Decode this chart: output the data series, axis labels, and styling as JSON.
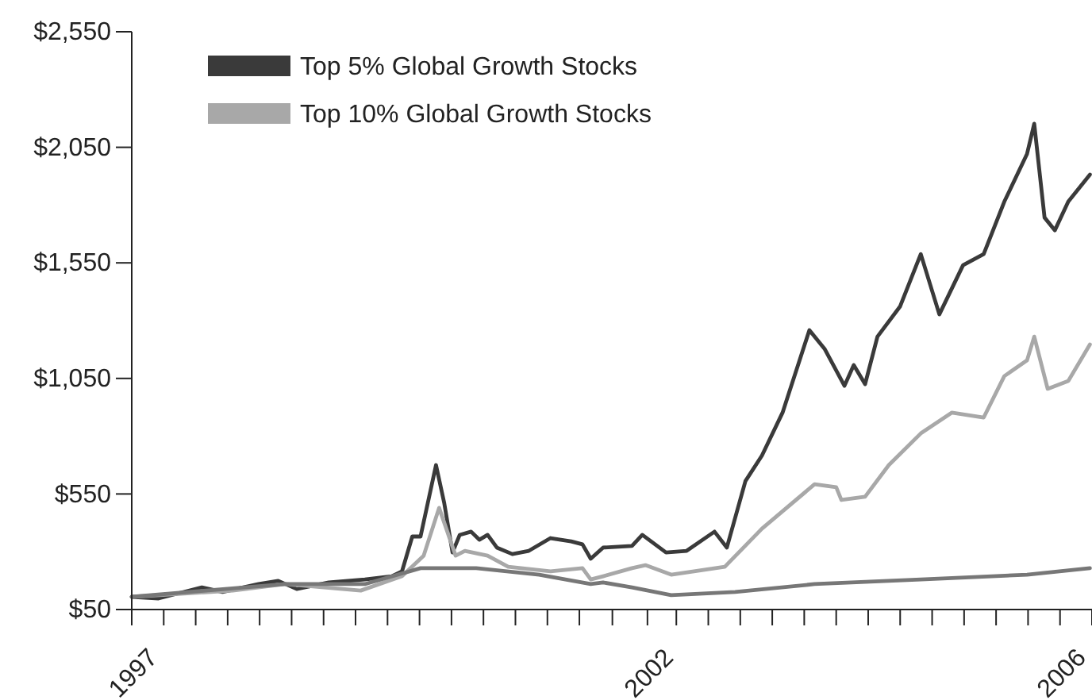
{
  "chart_data": {
    "type": "line",
    "xlim": [
      1997,
      2006.31
    ],
    "xticks": [
      1997,
      {
        "value": 1997.31,
        "label": null
      },
      {
        "value": 1997.62,
        "label": null
      },
      {
        "value": 1997.93,
        "label": null
      },
      {
        "value": 1998.24,
        "label": null
      },
      {
        "value": 1998.55,
        "label": null
      },
      {
        "value": 1998.86,
        "label": null
      },
      {
        "value": 1999.17,
        "label": null
      },
      {
        "value": 1999.48,
        "label": null
      },
      {
        "value": 1999.79,
        "label": null
      },
      {
        "value": 2000.1,
        "label": null
      },
      {
        "value": 2000.41,
        "label": null
      },
      {
        "value": 2000.72,
        "label": null
      },
      {
        "value": 2001.03,
        "label": null
      },
      {
        "value": 2001.34,
        "label": null
      },
      {
        "value": 2001.66,
        "label": null
      },
      2002,
      {
        "value": 2002.28,
        "label": null
      },
      {
        "value": 2002.59,
        "label": null
      },
      {
        "value": 2002.9,
        "label": null
      },
      {
        "value": 2003.21,
        "label": null
      },
      {
        "value": 2003.52,
        "label": null
      },
      {
        "value": 2003.83,
        "label": null
      },
      {
        "value": 2004.14,
        "label": null
      },
      {
        "value": 2004.45,
        "label": null
      },
      {
        "value": 2004.76,
        "label": null
      },
      {
        "value": 2005.07,
        "label": null
      },
      {
        "value": 2005.38,
        "label": null
      },
      {
        "value": 2005.69,
        "label": null
      },
      2006,
      {
        "value": 2006.31,
        "label": null
      }
    ],
    "ylim": [
      50,
      2550
    ],
    "yticks": [
      {
        "value": 50,
        "label": "$50"
      },
      {
        "value": 550,
        "label": "$550"
      },
      {
        "value": 1050,
        "label": "$1,050"
      },
      {
        "value": 1550,
        "label": "$1,550"
      },
      {
        "value": 2050,
        "label": "$2,050"
      },
      {
        "value": 2550,
        "label": "$2,550"
      }
    ],
    "grid": false,
    "legend": "top left",
    "line_style": "solid",
    "marker": "none",
    "series": [
      {
        "name": "Top 5% Global Growth Stocks",
        "color": "#3a3a3a",
        "x": [
          1997,
          1997.26,
          1997.68,
          1997.88,
          1998.23,
          1998.42,
          1998.6,
          1998.91,
          1999.26,
          1999.52,
          1999.62,
          1999.72,
          1999.8,
          1999.95,
          2000.03,
          2000.11,
          2000.18,
          2000.29,
          2000.37,
          2000.45,
          2000.54,
          2000.69,
          2000.85,
          2001.06,
          2001.26,
          2001.37,
          2001.45,
          2001.57,
          2001.85,
          2001.95,
          2002.18,
          2002.38,
          2002.65,
          2002.77,
          2002.95,
          2003.11,
          2003.31,
          2003.57,
          2003.72,
          2003.91,
          2004.0,
          2004.11,
          2004.23,
          2004.45,
          2004.65,
          2004.83,
          2005.06,
          2005.26,
          2005.46,
          2005.68,
          2005.75,
          2005.85,
          2005.95,
          2006.08,
          2006.29
        ],
        "values": [
          105,
          98,
          146,
          126,
          160,
          174,
          139,
          167,
          180,
          194,
          215,
          366,
          366,
          675,
          510,
          297,
          373,
          387,
          352,
          373,
          318,
          290,
          304,
          359,
          345,
          332,
          270,
          318,
          325,
          373,
          297,
          304,
          387,
          318,
          606,
          716,
          902,
          1259,
          1176,
          1018,
          1108,
          1025,
          1231,
          1362,
          1588,
          1327,
          1540,
          1588,
          1815,
          2021,
          2152,
          1746,
          1691,
          1815,
          1932
        ]
      },
      {
        "name": "Top 10% Global Growth Stocks",
        "color": "#a8a8a8",
        "x": [
          1997,
          1997.98,
          1998.49,
          1999.22,
          1999.62,
          1999.83,
          1999.98,
          2000.14,
          2000.23,
          2000.45,
          2000.65,
          2001.06,
          2001.37,
          2001.45,
          2001.57,
          2001.85,
          2001.98,
          2002.23,
          2002.75,
          2003.11,
          2003.62,
          2003.83,
          2003.88,
          2004.11,
          2004.34,
          2004.65,
          2004.95,
          2005.26,
          2005.46,
          2005.68,
          2005.75,
          2005.88,
          2006.08,
          2006.29
        ],
        "values": [
          105,
          132,
          160,
          132,
          194,
          283,
          490,
          283,
          304,
          283,
          235,
          215,
          229,
          180,
          194,
          229,
          242,
          201,
          235,
          400,
          592,
          579,
          524,
          538,
          675,
          812,
          902,
          881,
          1060,
          1128,
          1231,
          1005,
          1039,
          1197
        ]
      },
      {
        "color": "#777777",
        "x": [
          1997,
          1997.72,
          1998.49,
          1999.26,
          1999.8,
          2000.34,
          2000.95,
          2001.45,
          2001.57,
          2001.85,
          2002.23,
          2002.85,
          2003.62,
          2004.65,
          2005.68,
          2006.29
        ],
        "values": [
          105,
          132,
          160,
          160,
          229,
          229,
          201,
          160,
          167,
          146,
          112,
          126,
          160,
          180,
          201,
          229
        ]
      }
    ]
  }
}
